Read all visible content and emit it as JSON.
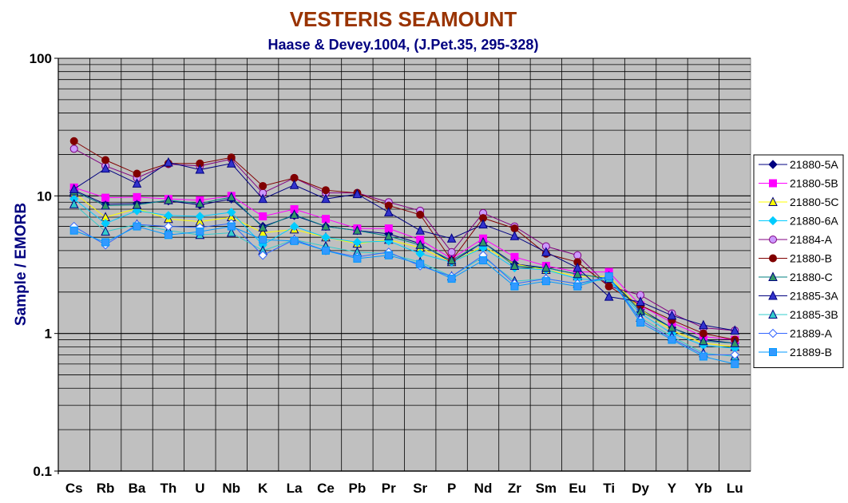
{
  "chart_data": {
    "type": "line",
    "title": "VESTERIS SEAMOUNT",
    "subtitle": "Haase & Devey.1004, (J.Pet.35, 295-328)",
    "title_color": "#993300",
    "subtitle_color": "#000080",
    "ylabel": "Sample / EMORB",
    "ylabel_color": "#000080",
    "xlabel": "",
    "yscale": "log",
    "ylim": [
      0.1,
      100
    ],
    "y_ticks": [
      "0.1",
      "1",
      "10",
      "100"
    ],
    "grid": true,
    "plot_background": "#c0c0c0",
    "legend_position": "right",
    "categories": [
      "Cs",
      "Rb",
      "Ba",
      "Th",
      "U",
      "Nb",
      "K",
      "La",
      "Ce",
      "Pb",
      "Pr",
      "Sr",
      "P",
      "Nd",
      "Zr",
      "Sm",
      "Eu",
      "Ti",
      "Dy",
      "Y",
      "Yb",
      "Lu"
    ],
    "series": [
      {
        "name": "21880-5A",
        "marker": "diamond",
        "color": "#000080",
        "fill": "#000080",
        "values": [
          11.0,
          8.7,
          8.8,
          9.2,
          8.6,
          9.5,
          6.0,
          7.2,
          6.0,
          5.6,
          5.3,
          4.5,
          3.3,
          4.6,
          3.2,
          3.0,
          2.7,
          2.5,
          1.5,
          1.1,
          0.9,
          0.85
        ]
      },
      {
        "name": "21880-5B",
        "marker": "square",
        "color": "#ff00ff",
        "fill": "#ff00ff",
        "values": [
          11.5,
          9.7,
          9.8,
          9.5,
          9.3,
          10.0,
          7.1,
          8.0,
          6.8,
          5.8,
          5.8,
          4.8,
          3.5,
          4.9,
          3.6,
          3.1,
          2.8,
          2.8,
          1.6,
          1.2,
          0.95,
          0.9
        ]
      },
      {
        "name": "21880-5C",
        "marker": "triangle",
        "color": "#ffff00",
        "fill": "#ffff00",
        "values": [
          10.5,
          7.0,
          8.1,
          6.8,
          6.5,
          7.0,
          5.4,
          5.7,
          5.0,
          4.5,
          4.8,
          4.2,
          3.3,
          4.3,
          3.2,
          2.9,
          2.6,
          2.6,
          1.5,
          1.05,
          0.85,
          0.8
        ]
      },
      {
        "name": "21880-6A",
        "marker": "diamond",
        "color": "#00ccff",
        "fill": "#00ccff",
        "values": [
          9.5,
          6.3,
          7.8,
          7.2,
          7.1,
          7.6,
          4.4,
          6.0,
          5.0,
          4.6,
          4.7,
          3.8,
          3.3,
          4.2,
          3.0,
          2.9,
          2.5,
          2.4,
          1.4,
          1.0,
          0.82,
          0.78
        ]
      },
      {
        "name": "21884-A",
        "marker": "circle",
        "color": "#800080",
        "fill": "#cc99ff",
        "values": [
          22.0,
          16.5,
          13.5,
          17.0,
          16.5,
          18.5,
          10.5,
          13.5,
          10.5,
          10.5,
          9.0,
          7.8,
          3.9,
          7.5,
          6.0,
          4.3,
          3.7,
          2.2,
          1.9,
          1.4,
          1.1,
          1.05
        ]
      },
      {
        "name": "21880-B",
        "marker": "circle",
        "color": "#800000",
        "fill": "#800000",
        "values": [
          25.0,
          18.2,
          14.5,
          17.2,
          17.2,
          19.0,
          11.8,
          13.5,
          11.0,
          10.5,
          8.5,
          7.3,
          3.4,
          6.9,
          5.8,
          3.8,
          3.3,
          2.2,
          1.6,
          1.25,
          1.0,
          0.9
        ]
      },
      {
        "name": "21880-C",
        "marker": "triangle",
        "color": "#008080",
        "fill": "#339966",
        "values": [
          10.8,
          8.5,
          8.6,
          9.3,
          8.8,
          9.8,
          5.9,
          7.3,
          6.0,
          5.6,
          5.1,
          4.4,
          3.4,
          4.6,
          3.1,
          3.0,
          2.7,
          2.5,
          1.45,
          1.1,
          0.88,
          0.85
        ]
      },
      {
        "name": "21885-3A",
        "marker": "triangle",
        "color": "#000080",
        "fill": "#3333cc",
        "values": [
          11.2,
          15.8,
          12.3,
          17.5,
          15.5,
          17.2,
          9.5,
          12.0,
          9.5,
          10.3,
          7.6,
          5.6,
          4.9,
          6.2,
          5.1,
          3.9,
          3.0,
          1.85,
          1.7,
          1.35,
          1.15,
          1.05
        ]
      },
      {
        "name": "21885-3B",
        "marker": "triangle",
        "color": "#33cccc",
        "fill": "#33cccc",
        "values": [
          8.7,
          5.5,
          6.2,
          5.6,
          5.2,
          5.4,
          4.0,
          4.8,
          4.3,
          3.9,
          3.8,
          3.3,
          2.6,
          3.6,
          2.4,
          2.5,
          2.3,
          2.5,
          1.3,
          0.95,
          0.72,
          0.68
        ]
      },
      {
        "name": "21889-A",
        "marker": "diamond-open",
        "color": "#3366ff",
        "fill": "#ffffff",
        "values": [
          6.0,
          4.4,
          6.2,
          6.0,
          5.9,
          6.3,
          3.7,
          4.8,
          4.0,
          3.6,
          3.9,
          3.1,
          2.6,
          3.7,
          2.3,
          2.5,
          2.3,
          2.6,
          1.25,
          0.92,
          0.7,
          0.7
        ]
      },
      {
        "name": "21889-B",
        "marker": "square",
        "color": "#0099ff",
        "fill": "#3399ff",
        "values": [
          5.6,
          4.6,
          6.0,
          5.2,
          5.5,
          6.0,
          4.8,
          4.7,
          4.0,
          3.5,
          3.7,
          3.2,
          2.5,
          3.4,
          2.2,
          2.4,
          2.2,
          2.6,
          1.2,
          0.9,
          0.68,
          0.6
        ]
      }
    ]
  }
}
